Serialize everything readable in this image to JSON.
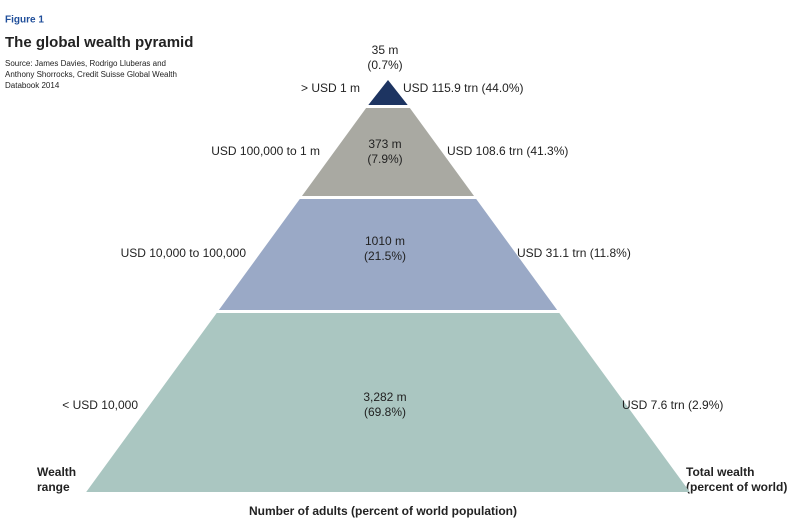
{
  "figure_label": "Figure 1",
  "title": "The global wealth pyramid",
  "source_lines": [
    "Source: James Davies, Rodrigo Lluberas and",
    "Anthony Shorrocks, Credit Suisse Global Wealth",
    "Databook 2014"
  ],
  "tiers": [
    {
      "range": "> USD 1 m",
      "adults": "35 m",
      "share": "(0.7%)",
      "wealth": "USD 115.9 trn (44.0%)"
    },
    {
      "range": "USD 100,000 to 1 m",
      "adults": "373 m",
      "share": "(7.9%)",
      "wealth": "USD 108.6 trn (41.3%)"
    },
    {
      "range": "USD 10,000 to 100,000",
      "adults": "1010 m",
      "share": "(21.5%)",
      "wealth": "USD 31.1 trn (11.8%)"
    },
    {
      "range": "< USD 10,000",
      "adults": "3,282 m",
      "share": "(69.8%)",
      "wealth": "USD 7.6 trn (2.9%)"
    }
  ],
  "left_axis_lines": [
    "Wealth",
    "range"
  ],
  "right_axis_lines": [
    "Total wealth",
    "(percent of world)"
  ],
  "bottom_axis": "Number of adults (percent of world population)"
}
